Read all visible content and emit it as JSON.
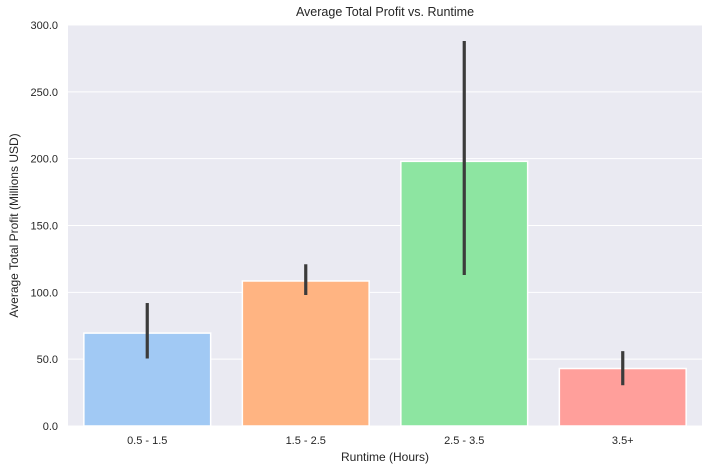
{
  "chart_data": {
    "type": "bar",
    "title": "Average Total Profit vs. Runtime",
    "xlabel": "Runtime (Hours)",
    "ylabel": "Average Total Profit (Millions USD)",
    "categories": [
      "0.5 - 1.5",
      "1.5 - 2.5",
      "2.5 - 3.5",
      "3.5+"
    ],
    "values": [
      69.5,
      108.5,
      198.0,
      43.0
    ],
    "error_low": [
      50.5,
      98.0,
      113.0,
      30.5
    ],
    "error_high": [
      92.0,
      121.0,
      288.0,
      56.0
    ],
    "ylim": [
      0,
      300
    ],
    "yticks": [
      0,
      50,
      100,
      150,
      200,
      250,
      300
    ],
    "ytick_labels": [
      "0.0",
      "50.0",
      "100.0",
      "150.0",
      "200.0",
      "250.0",
      "300.0"
    ],
    "grid": true,
    "colors": [
      "#a1c9f4",
      "#ffb482",
      "#8de5a1",
      "#ff9f9b"
    ],
    "background": "#eaeaf2",
    "errorbar_color": "#3b3b3b"
  }
}
